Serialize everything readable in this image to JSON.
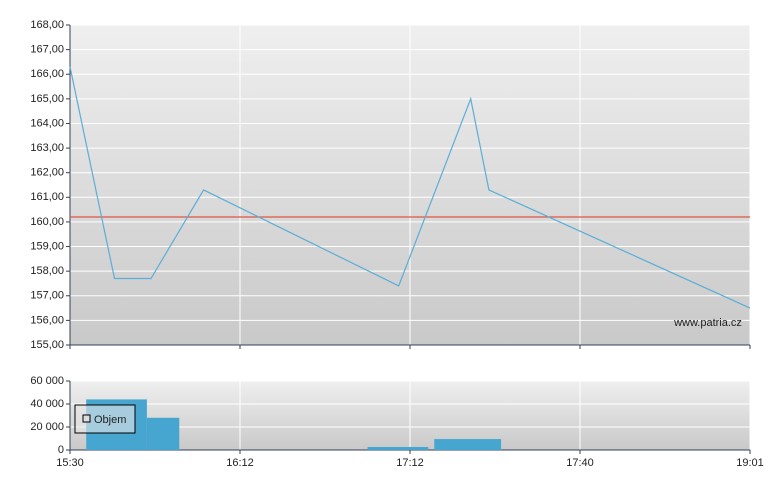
{
  "chart_data": [
    {
      "type": "line",
      "x": [
        930,
        941,
        950,
        963,
        1028,
        1042,
        1045,
        1141
      ],
      "values": [
        166.3,
        157.7,
        157.7,
        161.3,
        157.4,
        165.0,
        161.3,
        156.5
      ],
      "color": "#5aaed8",
      "reference_line": 160.2,
      "reference_color": "#e05545",
      "ylim": [
        155,
        168
      ],
      "yticks": [
        {
          "value": 155,
          "label": "155,00"
        },
        {
          "value": 156,
          "label": "156,00"
        },
        {
          "value": 157,
          "label": "157,00"
        },
        {
          "value": 158,
          "label": "158,00"
        },
        {
          "value": 159,
          "label": "159,00"
        },
        {
          "value": 160,
          "label": "160,00"
        },
        {
          "value": 161,
          "label": "161,00"
        },
        {
          "value": 162,
          "label": "162,00"
        },
        {
          "value": 163,
          "label": "163,00"
        },
        {
          "value": 164,
          "label": "164,00"
        },
        {
          "value": 165,
          "label": "165,00"
        },
        {
          "value": 166,
          "label": "166,00"
        },
        {
          "value": 167,
          "label": "167,00"
        },
        {
          "value": 168,
          "label": "168,00"
        }
      ],
      "xlim": [
        930,
        1141
      ],
      "xticks": [
        930,
        972,
        1032,
        1060,
        1141
      ],
      "grid": true,
      "watermark": "www.patria.cz"
    },
    {
      "type": "bar",
      "series": [
        {
          "name": "Objem",
          "color": "#47a6d0",
          "x": [
            934,
            949,
            1017,
            1036
          ],
          "x_end": [
            949,
            957,
            1035,
            1047
          ],
          "values": [
            44000,
            28000,
            2600,
            9500
          ]
        }
      ],
      "ylim": [
        0,
        60000
      ],
      "yticks": [
        0,
        {
          "value": 20000,
          "label": "20 000"
        },
        {
          "value": 40000,
          "label": "40 000"
        },
        {
          "value": 60000,
          "label": "60 000"
        }
      ],
      "xlim": [
        930,
        1141
      ],
      "xticks": [
        {
          "value": 930,
          "label": "15:30"
        },
        {
          "value": 972,
          "label": "16:12"
        },
        {
          "value": 1032,
          "label": "17:12"
        },
        {
          "value": 1060,
          "label": "17:40"
        },
        {
          "value": 1141,
          "label": "19:01"
        }
      ],
      "grid": true,
      "legend": "upper-left"
    }
  ]
}
